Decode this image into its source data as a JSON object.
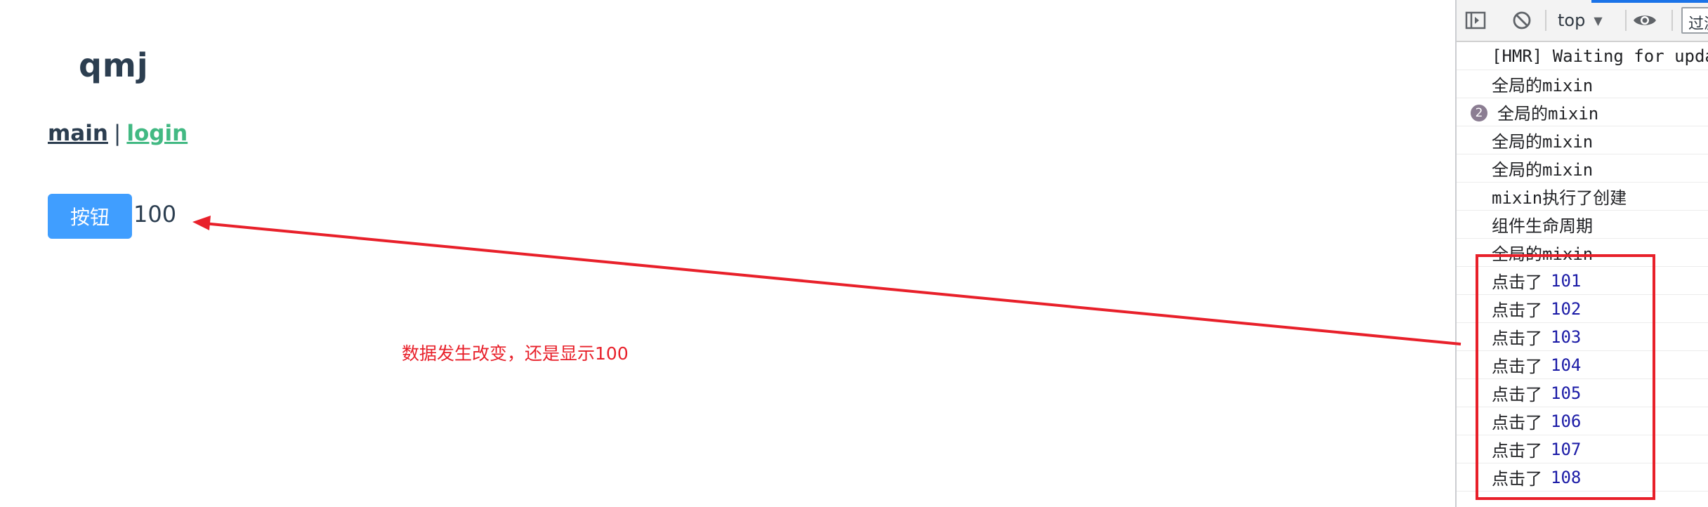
{
  "app": {
    "title": "qmj",
    "nav": {
      "main_label": "main",
      "separator": "|",
      "login_label": "login"
    },
    "button_label": "按钮",
    "count_value": "100"
  },
  "annotation": {
    "text": "数据发生改变，还是显示100",
    "color": "#e8202a"
  },
  "devtools": {
    "toolbar": {
      "context_value": "top",
      "filter_placeholder": "过滤"
    },
    "console_rows": [
      {
        "text": "[HMR] Waiting for update signal from WDS...",
        "value": null,
        "repeat": null
      },
      {
        "text": "全局的mixin",
        "value": null,
        "repeat": null
      },
      {
        "text": "全局的mixin",
        "value": null,
        "repeat": "2"
      },
      {
        "text": "全局的mixin",
        "value": null,
        "repeat": null
      },
      {
        "text": "全局的mixin",
        "value": null,
        "repeat": null
      },
      {
        "text": "mixin执行了创建",
        "value": null,
        "repeat": null
      },
      {
        "text": "组件生命周期",
        "value": null,
        "repeat": null
      },
      {
        "text": "全局的mixin",
        "value": null,
        "repeat": null
      },
      {
        "text": "点击了",
        "value": "101",
        "repeat": null
      },
      {
        "text": "点击了",
        "value": "102",
        "repeat": null
      },
      {
        "text": "点击了",
        "value": "103",
        "repeat": null
      },
      {
        "text": "点击了",
        "value": "104",
        "repeat": null
      },
      {
        "text": "点击了",
        "value": "105",
        "repeat": null
      },
      {
        "text": "点击了",
        "value": "106",
        "repeat": null
      },
      {
        "text": "点击了",
        "value": "107",
        "repeat": null
      },
      {
        "text": "点击了",
        "value": "108",
        "repeat": null
      }
    ]
  },
  "colors": {
    "heading": "#2c3e50",
    "link_active": "#42b983",
    "button_bg": "#409eff",
    "console_number": "#1a1aa6",
    "annotation_red": "#e8202a"
  },
  "icons": [
    "sidebar-toggle-icon",
    "clear-console-icon",
    "caret-down-icon",
    "eye-icon"
  ]
}
